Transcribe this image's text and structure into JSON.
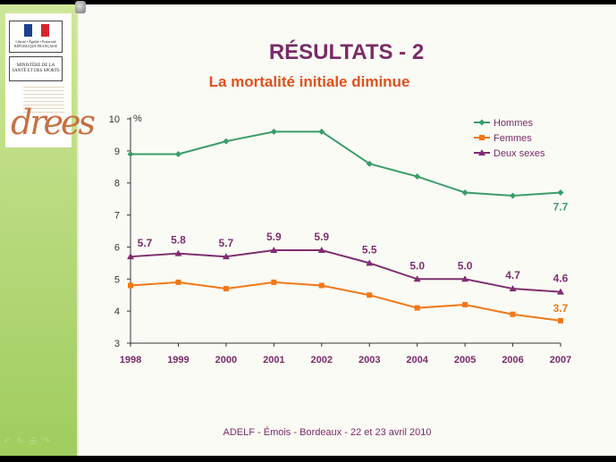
{
  "slide": {
    "title": "RÉSULTATS - 2",
    "subtitle": "La  mortalité initiale diminue",
    "footer": "ADELF - Émois - Bordeaux - 22 et 23 avril 2010"
  },
  "sidebar": {
    "ministry_text": "MINISTÈRE DE LA SANTÉ ET DES SPORTS",
    "republic_text": "Liberté • Égalité • Fraternité RÉPUBLIQUE FRANÇAISE",
    "drees_logo": "drees",
    "nav_icons": [
      "back-icon",
      "pen-icon",
      "menu-icon",
      "forward-icon"
    ]
  },
  "colors": {
    "hommes": "#3a9d6a",
    "femmes": "#f07818",
    "deux_sexes": "#7e2f6e",
    "title": "#7a2b67",
    "subtitle": "#e0501c"
  },
  "chart_data": {
    "type": "line",
    "x": [
      "1998",
      "1999",
      "2000",
      "2001",
      "2002",
      "2003",
      "2004",
      "2005",
      "2006",
      "2007"
    ],
    "ylim": [
      3,
      10
    ],
    "yticks": [
      "3",
      "4",
      "5",
      "6",
      "7",
      "8",
      "9",
      "10"
    ],
    "ylabel": "%",
    "grid": false,
    "legend": "top-right",
    "series": [
      {
        "name": "Hommes",
        "values": [
          8.9,
          8.9,
          9.3,
          9.6,
          9.6,
          8.6,
          8.2,
          7.7,
          7.6,
          7.7
        ],
        "labels": [
          "",
          "",
          "",
          "",
          "",
          "",
          "",
          "",
          "",
          "7.7"
        ]
      },
      {
        "name": "Femmes",
        "values": [
          4.8,
          4.9,
          4.7,
          4.9,
          4.8,
          4.5,
          4.1,
          4.2,
          3.9,
          3.7
        ],
        "labels": [
          "",
          "",
          "",
          "",
          "",
          "",
          "",
          "",
          "",
          "3.7"
        ]
      },
      {
        "name": "Deux sexes",
        "values": [
          5.7,
          5.8,
          5.7,
          5.9,
          5.9,
          5.5,
          5.0,
          5.0,
          4.7,
          4.6
        ],
        "labels": [
          "5.7",
          "5.8",
          "5.7",
          "5.9",
          "5.9",
          "5.5",
          "5.0",
          "5.0",
          "4.7",
          "4.6"
        ]
      }
    ]
  }
}
